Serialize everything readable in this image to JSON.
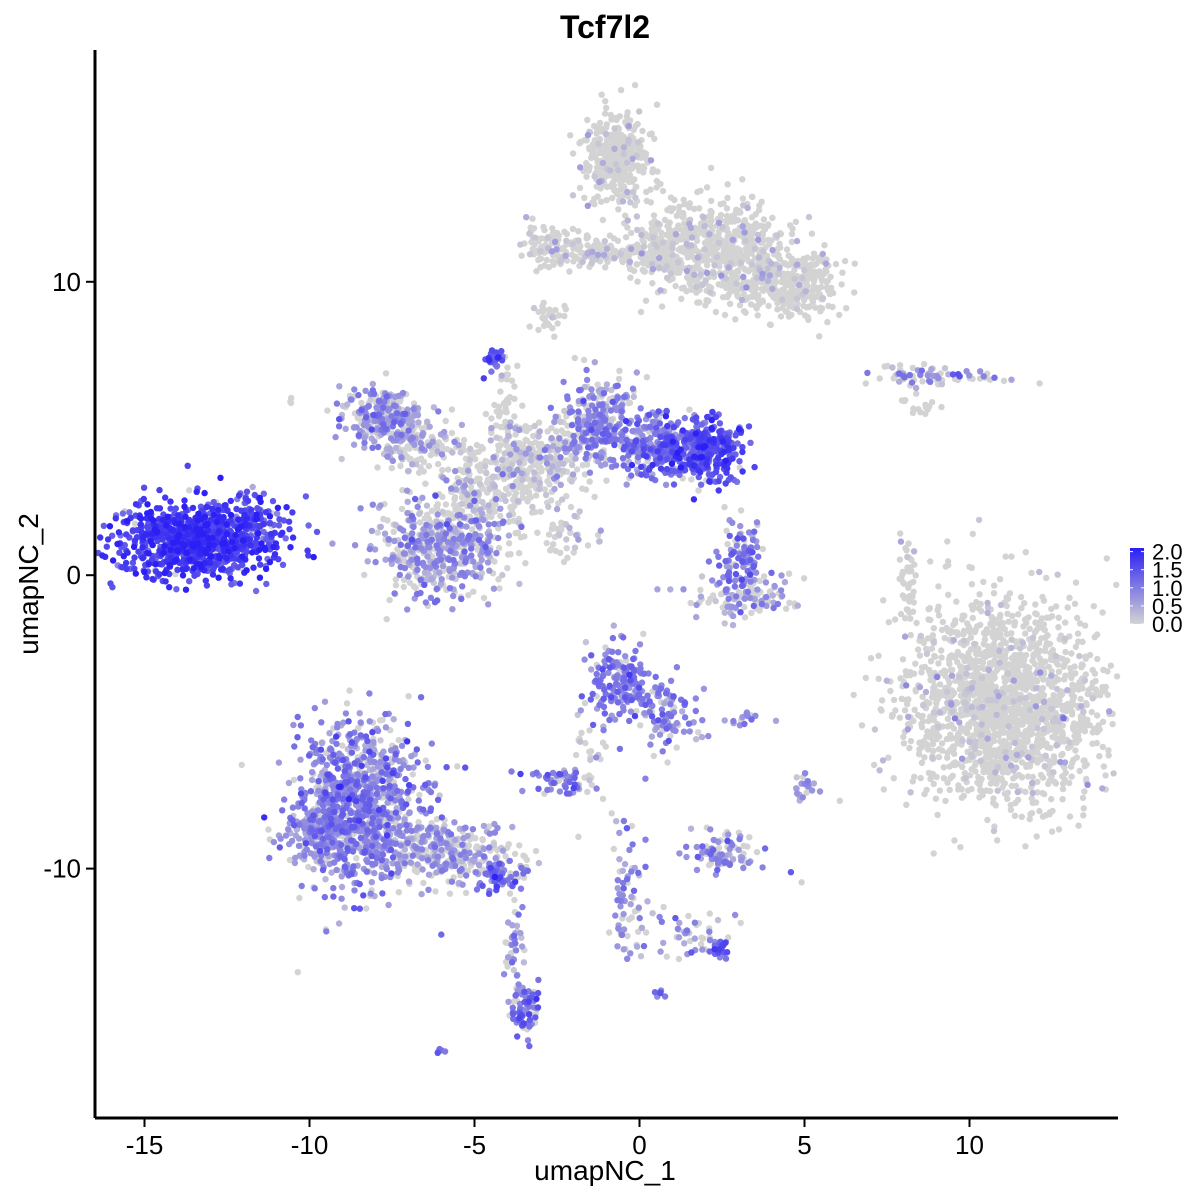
{
  "chart_data": {
    "type": "scatter",
    "title": "Tcf7l2",
    "xlabel": "umapNC_1",
    "ylabel": "umapNC_2",
    "xlim": [
      -16.5,
      14.5
    ],
    "ylim": [
      -18.5,
      17.9
    ],
    "xticks": [
      -15,
      -10,
      -5,
      0,
      5,
      10
    ],
    "yticks": [
      -10,
      0,
      10
    ],
    "xtick_labels": [
      "-15",
      "-10",
      "-5",
      "0",
      "5",
      "10"
    ],
    "ytick_labels": [
      "-10",
      "0",
      "10"
    ],
    "grid": false,
    "legend_position": "right",
    "color_scale": {
      "low": "#d3d3d3",
      "high": "#2b1ff5",
      "min": 0.0,
      "max": 2.1,
      "breaks": [
        0.0,
        0.5,
        1.0,
        1.5,
        2.0
      ],
      "break_labels": [
        "0.0",
        "0.5",
        "1.0",
        "1.5",
        "2.0"
      ]
    },
    "clusters": [
      {
        "cx": -13.4,
        "cy": 1.2,
        "sx": 1.2,
        "sy": 0.65,
        "n": 900,
        "expr_mean": 1.7,
        "expr_sd": 0.3,
        "expr_frac": 0.97
      },
      {
        "cx": -11.8,
        "cy": 1.9,
        "sx": 0.35,
        "sy": 0.45,
        "n": 80,
        "expr_mean": 1.3,
        "expr_sd": 0.3,
        "expr_frac": 0.9
      },
      {
        "cx": -7.8,
        "cy": 5.5,
        "sx": 0.6,
        "sy": 0.5,
        "n": 220,
        "expr_mean": 0.7,
        "expr_sd": 0.3,
        "expr_frac": 0.8
      },
      {
        "cx": -6.8,
        "cy": 4.5,
        "sx": 0.5,
        "sy": 0.5,
        "n": 120,
        "expr_mean": 0.5,
        "expr_sd": 0.3,
        "expr_frac": 0.5
      },
      {
        "cx": -6.0,
        "cy": 1.0,
        "sx": 1.0,
        "sy": 0.85,
        "n": 500,
        "expr_mean": 0.7,
        "expr_sd": 0.3,
        "expr_frac": 0.65
      },
      {
        "cx": -4.5,
        "cy": 3.2,
        "sx": 0.9,
        "sy": 1.0,
        "n": 300,
        "expr_mean": 0.3,
        "expr_sd": 0.3,
        "expr_frac": 0.2
      },
      {
        "cx": -2.8,
        "cy": 4.0,
        "sx": 0.8,
        "sy": 0.7,
        "n": 200,
        "expr_mean": 0.4,
        "expr_sd": 0.3,
        "expr_frac": 0.25
      },
      {
        "cx": -1.2,
        "cy": 5.2,
        "sx": 0.6,
        "sy": 0.8,
        "n": 260,
        "expr_mean": 0.8,
        "expr_sd": 0.3,
        "expr_frac": 0.7
      },
      {
        "cx": 0.3,
        "cy": 4.5,
        "sx": 0.8,
        "sy": 0.5,
        "n": 240,
        "expr_mean": 1.0,
        "expr_sd": 0.3,
        "expr_frac": 0.8
      },
      {
        "cx": 1.9,
        "cy": 4.2,
        "sx": 0.7,
        "sy": 0.55,
        "n": 320,
        "expr_mean": 1.5,
        "expr_sd": 0.3,
        "expr_frac": 0.95
      },
      {
        "cx": -4.4,
        "cy": 7.4,
        "sx": 0.15,
        "sy": 0.2,
        "n": 25,
        "expr_mean": 1.4,
        "expr_sd": 0.3,
        "expr_frac": 0.95
      },
      {
        "cx": -4.0,
        "cy": 5.3,
        "sx": 0.2,
        "sy": 1.0,
        "n": 50,
        "expr_mean": 0.3,
        "expr_sd": 0.3,
        "expr_frac": 0.2
      },
      {
        "cx": -2.2,
        "cy": 1.3,
        "sx": 0.5,
        "sy": 0.4,
        "n": 40,
        "expr_mean": 0.4,
        "expr_sd": 0.3,
        "expr_frac": 0.25
      },
      {
        "cx": -0.7,
        "cy": 14.2,
        "sx": 0.5,
        "sy": 0.8,
        "n": 350,
        "expr_mean": 0.2,
        "expr_sd": 0.3,
        "expr_frac": 0.1
      },
      {
        "cx": 0.8,
        "cy": 11.2,
        "sx": 0.6,
        "sy": 0.7,
        "n": 250,
        "expr_mean": 0.2,
        "expr_sd": 0.3,
        "expr_frac": 0.1
      },
      {
        "cx": 2.7,
        "cy": 11.0,
        "sx": 0.9,
        "sy": 0.9,
        "n": 450,
        "expr_mean": 0.2,
        "expr_sd": 0.3,
        "expr_frac": 0.12
      },
      {
        "cx": 4.5,
        "cy": 9.9,
        "sx": 0.8,
        "sy": 0.6,
        "n": 300,
        "expr_mean": 0.2,
        "expr_sd": 0.3,
        "expr_frac": 0.08
      },
      {
        "cx": -2.7,
        "cy": 11.3,
        "sx": 0.4,
        "sy": 0.4,
        "n": 100,
        "expr_mean": 0.2,
        "expr_sd": 0.3,
        "expr_frac": 0.15
      },
      {
        "cx": -1.0,
        "cy": 11.0,
        "sx": 0.9,
        "sy": 0.25,
        "n": 120,
        "expr_mean": 0.2,
        "expr_sd": 0.3,
        "expr_frac": 0.1
      },
      {
        "cx": -2.9,
        "cy": 8.7,
        "sx": 0.3,
        "sy": 0.3,
        "n": 30,
        "expr_mean": 0.1,
        "expr_sd": 0.2,
        "expr_frac": 0.05
      },
      {
        "cx": 8.8,
        "cy": 6.8,
        "sx": 1.0,
        "sy": 0.15,
        "n": 70,
        "expr_mean": 0.8,
        "expr_sd": 0.3,
        "expr_frac": 0.5
      },
      {
        "cx": 8.5,
        "cy": 5.8,
        "sx": 0.3,
        "sy": 0.2,
        "n": 15,
        "expr_mean": 0.1,
        "expr_sd": 0.2,
        "expr_frac": 0.1
      },
      {
        "cx": 3.0,
        "cy": 0.7,
        "sx": 0.35,
        "sy": 0.6,
        "n": 100,
        "expr_mean": 1.0,
        "expr_sd": 0.3,
        "expr_frac": 0.8
      },
      {
        "cx": 3.2,
        "cy": -0.8,
        "sx": 0.9,
        "sy": 0.35,
        "n": 120,
        "expr_mean": 0.7,
        "expr_sd": 0.3,
        "expr_frac": 0.5
      },
      {
        "cx": 11.0,
        "cy": -4.5,
        "sx": 1.5,
        "sy": 1.7,
        "n": 1800,
        "expr_mean": 0.2,
        "expr_sd": 0.3,
        "expr_frac": 0.08
      },
      {
        "cx": 8.1,
        "cy": -0.3,
        "sx": 0.15,
        "sy": 0.8,
        "n": 40,
        "expr_mean": 0.2,
        "expr_sd": 0.3,
        "expr_frac": 0.15
      },
      {
        "cx": -0.6,
        "cy": -3.7,
        "sx": 0.5,
        "sy": 0.7,
        "n": 180,
        "expr_mean": 1.0,
        "expr_sd": 0.3,
        "expr_frac": 0.85
      },
      {
        "cx": 0.8,
        "cy": -4.8,
        "sx": 0.5,
        "sy": 0.6,
        "n": 90,
        "expr_mean": 0.9,
        "expr_sd": 0.3,
        "expr_frac": 0.7
      },
      {
        "cx": -1.6,
        "cy": -6.1,
        "sx": 0.3,
        "sy": 0.8,
        "n": 30,
        "expr_mean": 0.5,
        "expr_sd": 0.3,
        "expr_frac": 0.3
      },
      {
        "cx": -2.5,
        "cy": -7.0,
        "sx": 0.5,
        "sy": 0.25,
        "n": 50,
        "expr_mean": 1.0,
        "expr_sd": 0.3,
        "expr_frac": 0.8
      },
      {
        "cx": 2.6,
        "cy": -9.5,
        "sx": 0.6,
        "sy": 0.35,
        "n": 90,
        "expr_mean": 0.8,
        "expr_sd": 0.3,
        "expr_frac": 0.6
      },
      {
        "cx": 5.0,
        "cy": -7.2,
        "sx": 0.15,
        "sy": 0.25,
        "n": 25,
        "expr_mean": 0.8,
        "expr_sd": 0.3,
        "expr_frac": 0.7
      },
      {
        "cx": 3.3,
        "cy": -4.9,
        "sx": 0.25,
        "sy": 0.1,
        "n": 15,
        "expr_mean": 0.8,
        "expr_sd": 0.3,
        "expr_frac": 0.7
      },
      {
        "cx": -8.5,
        "cy": -7.8,
        "sx": 1.0,
        "sy": 1.4,
        "n": 900,
        "expr_mean": 0.9,
        "expr_sd": 0.35,
        "expr_frac": 0.8
      },
      {
        "cx": -9.6,
        "cy": -8.8,
        "sx": 0.6,
        "sy": 0.6,
        "n": 200,
        "expr_mean": 0.8,
        "expr_sd": 0.3,
        "expr_frac": 0.75
      },
      {
        "cx": -6.0,
        "cy": -9.4,
        "sx": 1.1,
        "sy": 0.5,
        "n": 320,
        "expr_mean": 0.6,
        "expr_sd": 0.3,
        "expr_frac": 0.5
      },
      {
        "cx": -4.3,
        "cy": -10.3,
        "sx": 0.35,
        "sy": 0.25,
        "n": 60,
        "expr_mean": 1.2,
        "expr_sd": 0.3,
        "expr_frac": 0.85
      },
      {
        "cx": -3.8,
        "cy": -12.5,
        "sx": 0.15,
        "sy": 1.2,
        "n": 40,
        "expr_mean": 0.7,
        "expr_sd": 0.3,
        "expr_frac": 0.6
      },
      {
        "cx": -3.5,
        "cy": -14.8,
        "sx": 0.25,
        "sy": 0.5,
        "n": 70,
        "expr_mean": 1.1,
        "expr_sd": 0.3,
        "expr_frac": 0.85
      },
      {
        "cx": -0.4,
        "cy": -11.0,
        "sx": 0.25,
        "sy": 1.2,
        "n": 60,
        "expr_mean": 0.8,
        "expr_sd": 0.3,
        "expr_frac": 0.7
      },
      {
        "cx": 1.3,
        "cy": -12.2,
        "sx": 1.0,
        "sy": 0.4,
        "n": 50,
        "expr_mean": 0.7,
        "expr_sd": 0.3,
        "expr_frac": 0.6
      },
      {
        "cx": 2.4,
        "cy": -12.7,
        "sx": 0.2,
        "sy": 0.2,
        "n": 25,
        "expr_mean": 1.2,
        "expr_sd": 0.3,
        "expr_frac": 0.9
      },
      {
        "cx": 0.6,
        "cy": -14.2,
        "sx": 0.1,
        "sy": 0.1,
        "n": 6,
        "expr_mean": 1.0,
        "expr_sd": 0.3,
        "expr_frac": 0.9
      },
      {
        "cx": -6.0,
        "cy": -16.2,
        "sx": 0.1,
        "sy": 0.1,
        "n": 5,
        "expr_mean": 1.0,
        "expr_sd": 0.3,
        "expr_frac": 0.9
      },
      {
        "cx": -10.5,
        "cy": 6.0,
        "sx": 0.05,
        "sy": 0.1,
        "n": 3,
        "expr_mean": 0.5,
        "expr_sd": 0.2,
        "expr_frac": 0.5
      }
    ]
  }
}
